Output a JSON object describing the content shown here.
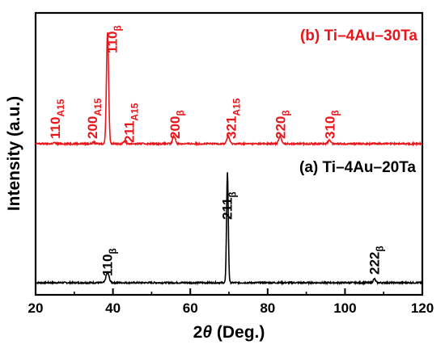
{
  "chart_data": {
    "type": "line",
    "title": "",
    "xlabel": {
      "prefix": "2",
      "italic": "θ",
      "suffix": " (Deg.)"
    },
    "ylabel": "Intensity (a.u.)",
    "xlim": [
      20,
      120
    ],
    "x_ticks": [
      "20",
      "40",
      "60",
      "80",
      "100",
      "120"
    ],
    "y_ticks_labeled": false,
    "grid": false,
    "series": [
      {
        "name": "(a) Ti–4Au–20Ta",
        "color": "#000000",
        "baseline": 0.0,
        "peaks": [
          {
            "x": 38.6,
            "height": 0.04,
            "width": 0.4
          },
          {
            "x": 69.6,
            "height": 0.44,
            "width": 0.22
          },
          {
            "x": 107.6,
            "height": 0.015,
            "width": 0.3
          }
        ],
        "peak_labels": [
          {
            "x": 38.5,
            "main": "110",
            "sub": "β"
          },
          {
            "x": 69.5,
            "main": "211",
            "sub": "β"
          },
          {
            "x": 107.5,
            "main": "222",
            "sub": "β"
          }
        ]
      },
      {
        "name": "(b) Ti–4Au–30Ta",
        "color": "#e8161a",
        "baseline": 0.555,
        "peaks": [
          {
            "x": 24.8,
            "height": 0.004,
            "width": 0.3
          },
          {
            "x": 35.0,
            "height": 0.006,
            "width": 0.3
          },
          {
            "x": 38.6,
            "height": 0.445,
            "width": 0.28
          },
          {
            "x": 43.0,
            "height": 0.01,
            "width": 0.3
          },
          {
            "x": 55.8,
            "height": 0.03,
            "width": 0.35
          },
          {
            "x": 69.8,
            "height": 0.03,
            "width": 0.35
          },
          {
            "x": 83.2,
            "height": 0.03,
            "width": 0.35
          },
          {
            "x": 96.0,
            "height": 0.015,
            "width": 0.35
          }
        ],
        "peak_labels": [
          {
            "x": 25.0,
            "main": "110",
            "sub": "A15"
          },
          {
            "x": 34.6,
            "main": "200",
            "sub": "A15"
          },
          {
            "x": 39.8,
            "main": "110",
            "sub": "β"
          },
          {
            "x": 44.2,
            "main": "211",
            "sub": "A15"
          },
          {
            "x": 56.0,
            "main": "200",
            "sub": "β"
          },
          {
            "x": 70.5,
            "main": "321",
            "sub": "A15"
          },
          {
            "x": 83.3,
            "main": "220",
            "sub": "β"
          },
          {
            "x": 96.0,
            "main": "310",
            "sub": "β"
          }
        ]
      }
    ]
  }
}
